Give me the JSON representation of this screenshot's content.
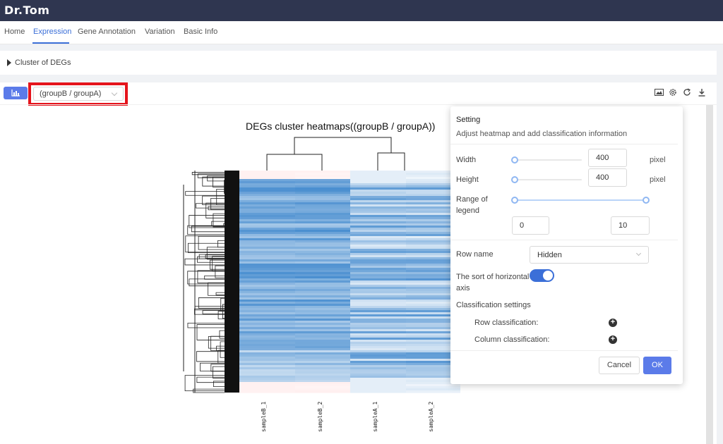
{
  "app": {
    "brand": "Dr.Tom"
  },
  "nav": {
    "items": [
      "Home",
      "Expression",
      "Gene Annotation",
      "Variation",
      "Basic Info"
    ],
    "active": "Expression"
  },
  "section": {
    "title": "Cluster of DEGs"
  },
  "toolbar": {
    "group_select_value": "(groupB / groupA)",
    "icons": [
      "image-icon",
      "gear-icon",
      "refresh-icon",
      "download-icon"
    ]
  },
  "chart": {
    "title": "DEGs cluster heatmaps((groupB / groupA))",
    "samples": [
      "sampleB_1",
      "sampleB_2",
      "sampleA_1",
      "sampleA_2"
    ]
  },
  "chart_data": {
    "type": "heatmap",
    "title": "DEGs cluster heatmaps((groupB / groupA))",
    "columns": [
      "sampleB_1",
      "sampleB_2",
      "sampleA_1",
      "sampleA_2"
    ],
    "column_clusters": [
      [
        "sampleB_1",
        "sampleB_2"
      ],
      [
        "sampleA_1",
        "sampleA_2"
      ]
    ],
    "row_names": "Hidden",
    "colors": {
      "low": "#4a8fd0",
      "mid": "#ffffff",
      "high": "#f8c8c8"
    }
  },
  "setting": {
    "title": "Setting",
    "subtitle": "Adjust heatmap and add classification information",
    "width_label": "Width",
    "width_value": "400",
    "height_label": "Height",
    "height_value": "400",
    "unit": "pixel",
    "range_label": "Range of legend",
    "range_min": "0",
    "range_max": "10",
    "row_name_label": "Row name",
    "row_name_value": "Hidden",
    "sort_label": "The sort of horizontal axis",
    "sort_enabled": true,
    "classification_label": "Classification settings",
    "row_classification": "Row classification:",
    "column_classification": "Column classification:",
    "cancel": "Cancel",
    "ok": "OK"
  },
  "colors": {
    "primary": "#3b6fd8",
    "button": "#5b7be9",
    "highlight": "#e5141c",
    "topbar": "#2f3650"
  }
}
